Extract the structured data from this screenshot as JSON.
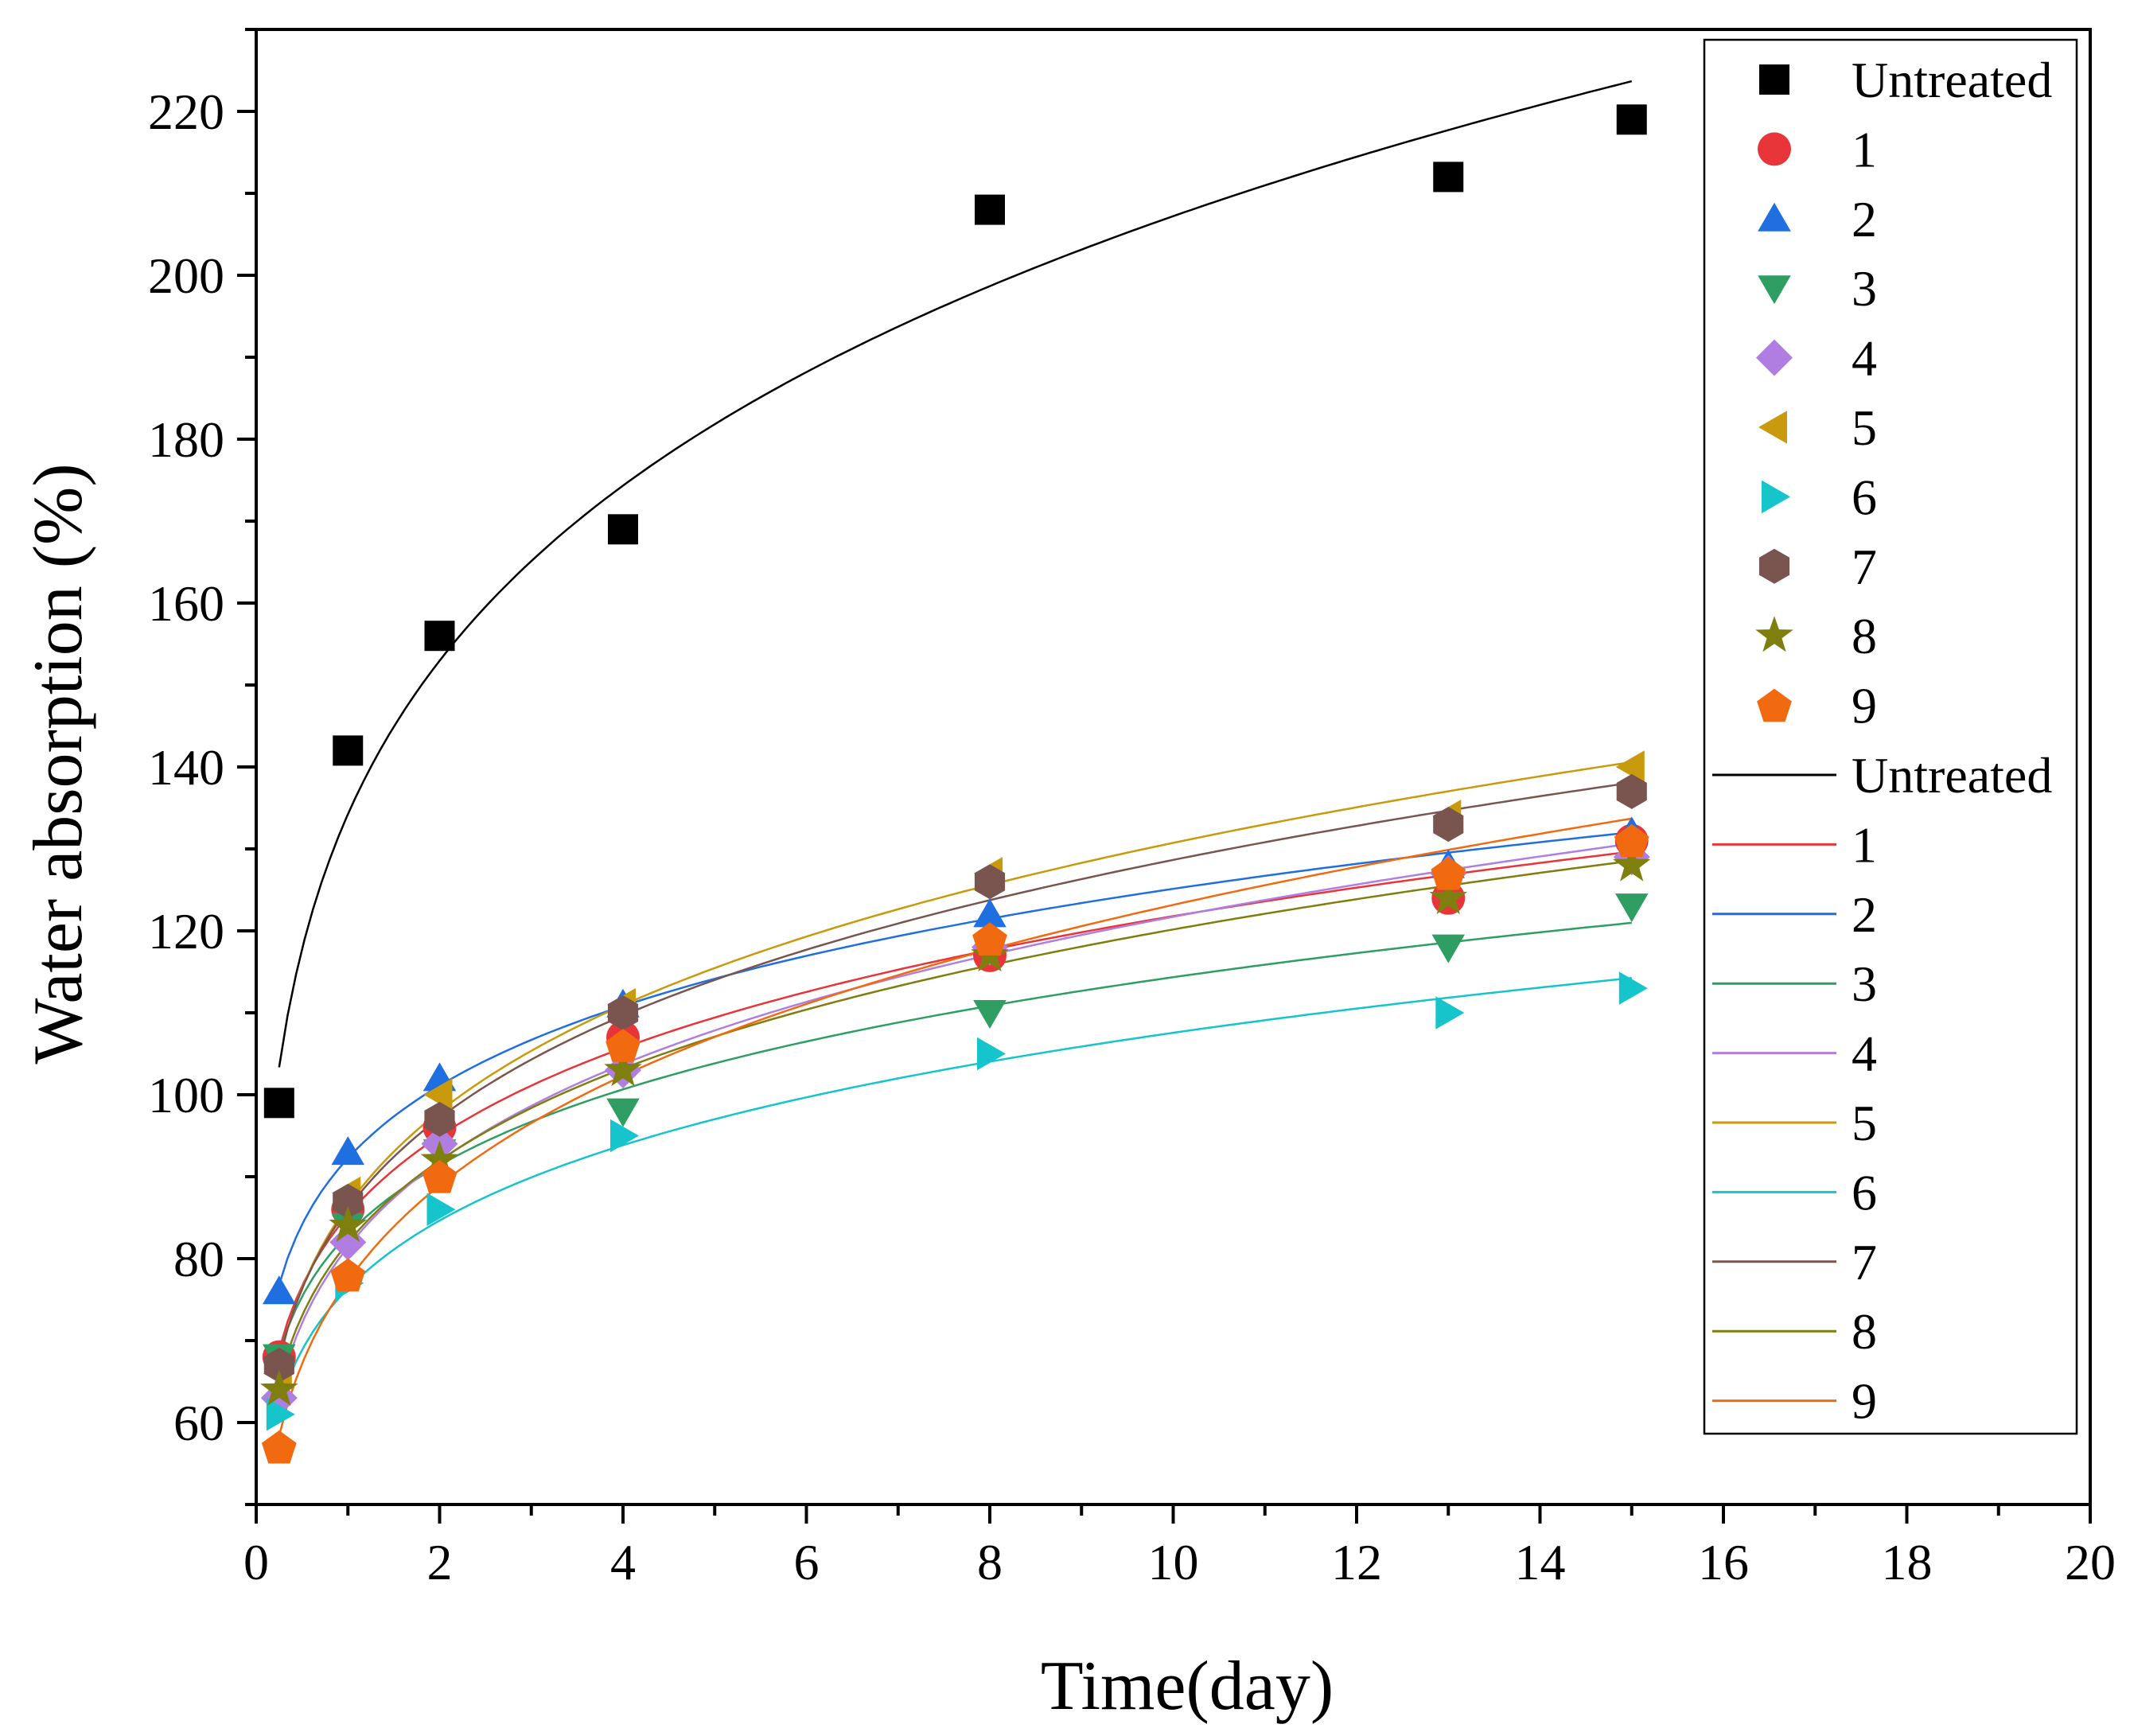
{
  "chart_data": {
    "type": "scatter",
    "title": "",
    "xlabel": "Time(day)",
    "ylabel": "Water absorption (%)",
    "xlim": [
      0,
      20
    ],
    "ylim": [
      50,
      230
    ],
    "x_ticks": [
      0,
      2,
      4,
      6,
      8,
      10,
      12,
      14,
      16,
      18,
      20
    ],
    "y_ticks": [
      60,
      80,
      100,
      120,
      140,
      160,
      180,
      200,
      220
    ],
    "x": [
      0.25,
      1,
      2,
      4,
      8,
      13,
      15
    ],
    "fit": "power",
    "legend_position": "top-right",
    "series": [
      {
        "name": "Untreated",
        "marker": "square",
        "color": "#000000",
        "values": [
          99,
          142,
          156,
          169,
          208,
          212,
          219
        ]
      },
      {
        "name": "1",
        "marker": "circle",
        "color": "#e8353a",
        "values": [
          68,
          86,
          96,
          107,
          117,
          124,
          131
        ]
      },
      {
        "name": "2",
        "marker": "triangle-up",
        "color": "#1f6fe0",
        "values": [
          76,
          93,
          102,
          111,
          122,
          128,
          132
        ]
      },
      {
        "name": "3",
        "marker": "triangle-down",
        "color": "#2f9e63",
        "values": [
          68,
          84,
          93,
          98,
          110,
          118,
          123
        ]
      },
      {
        "name": "4",
        "marker": "diamond",
        "color": "#b07ee0",
        "values": [
          63,
          82,
          94,
          103,
          118,
          127,
          129
        ]
      },
      {
        "name": "5",
        "marker": "triangle-left",
        "color": "#c99a0c",
        "values": [
          66,
          88,
          100,
          111,
          127,
          134,
          140
        ]
      },
      {
        "name": "6",
        "marker": "triangle-right",
        "color": "#16c4cc",
        "values": [
          61,
          77,
          86,
          95,
          105,
          110,
          113
        ]
      },
      {
        "name": "7",
        "marker": "hexagon",
        "color": "#7a5550",
        "values": [
          67,
          87,
          97,
          110,
          126,
          133,
          137
        ]
      },
      {
        "name": "8",
        "marker": "star",
        "color": "#7f7f10",
        "values": [
          64,
          84,
          92,
          103,
          117,
          124,
          128
        ]
      },
      {
        "name": "9",
        "marker": "pentagon",
        "color": "#f26a10",
        "values": [
          57,
          78,
          90,
          106,
          119,
          127,
          131
        ]
      }
    ]
  }
}
